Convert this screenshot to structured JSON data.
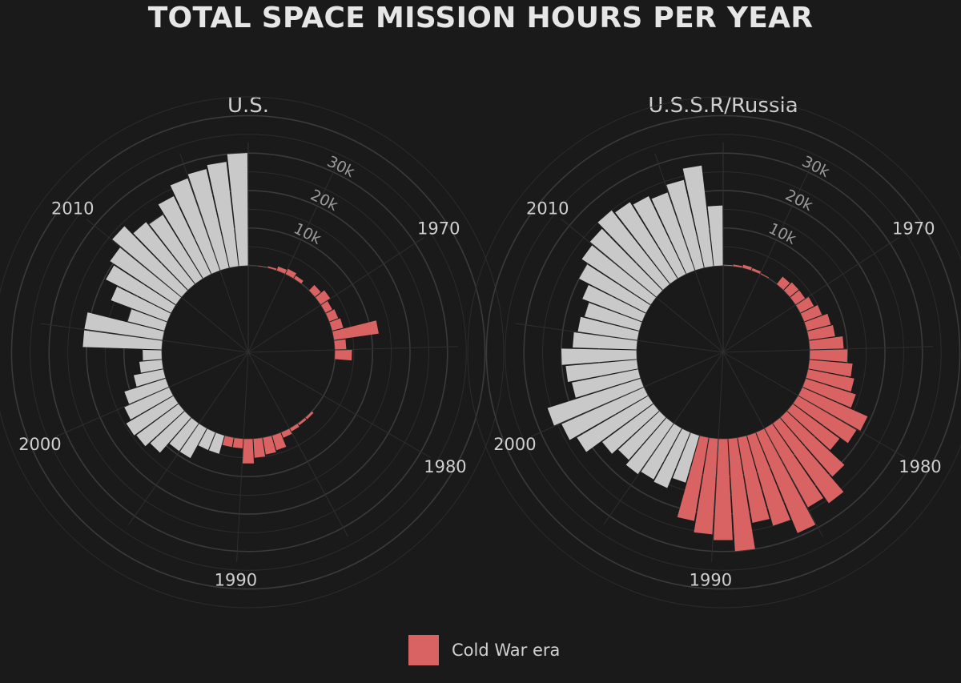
{
  "title": "TOTAL SPACE MISSION HOURS PER YEAR",
  "legend": {
    "label": "Cold War era",
    "color": "#d96262"
  },
  "colors": {
    "background": "#1a1a1a",
    "default_bar": "#c9c9c9",
    "highlight_bar": "#d96262",
    "grid": "#3a3a3a",
    "text": "#d9d9d9"
  },
  "chart_data": [
    {
      "type": "bar",
      "coord": "polar",
      "title": "U.S.",
      "year_start": 1961,
      "year_end": 2017,
      "cold_war_end": 1991,
      "angle_labels": [
        "1970",
        "1980",
        "1990",
        "2000",
        "2010"
      ],
      "radial_ticks": [
        "10k",
        "20k",
        "30k"
      ],
      "ylim": [
        -11000,
        45000
      ],
      "values": [
        0,
        100,
        400,
        1100,
        1500,
        900,
        0,
        2000,
        3000,
        2000,
        2500,
        3000,
        12000,
        3000,
        4500,
        0,
        0,
        0,
        0,
        0,
        0,
        600,
        600,
        900,
        1500,
        4000,
        4500,
        5000,
        6500,
        2500,
        2500,
        5000,
        5000,
        9000,
        9000,
        12500,
        14000,
        14500,
        13000,
        11500,
        8000,
        6000,
        5000,
        21000,
        21000,
        10000,
        16000,
        19500,
        21000,
        24000,
        21000,
        20000,
        23000,
        26000,
        27000,
        28000,
        30000
      ]
    },
    {
      "type": "bar",
      "coord": "polar",
      "title": "U.S.S.R/Russia",
      "year_start": 1961,
      "year_end": 2017,
      "cold_war_end": 1991,
      "angle_labels": [
        "1970",
        "1980",
        "1990",
        "2000",
        "2010"
      ],
      "radial_ticks": [
        "10k",
        "20k",
        "30k"
      ],
      "ylim": [
        -11000,
        45000
      ],
      "values": [
        200,
        400,
        800,
        600,
        200,
        0,
        2500,
        3000,
        3000,
        4000,
        5000,
        6500,
        7000,
        9000,
        10000,
        11500,
        12500,
        14000,
        19000,
        18000,
        15500,
        21000,
        26000,
        24000,
        29000,
        25000,
        23000,
        30000,
        27000,
        25500,
        22500,
        13000,
        16000,
        15500,
        16500,
        15000,
        17000,
        22000,
        24000,
        26000,
        18000,
        19000,
        20000,
        17000,
        16000,
        15000,
        17000,
        20000,
        22000,
        23000,
        25000,
        24000,
        23000,
        22000,
        24000,
        27000,
        16000
      ]
    }
  ]
}
